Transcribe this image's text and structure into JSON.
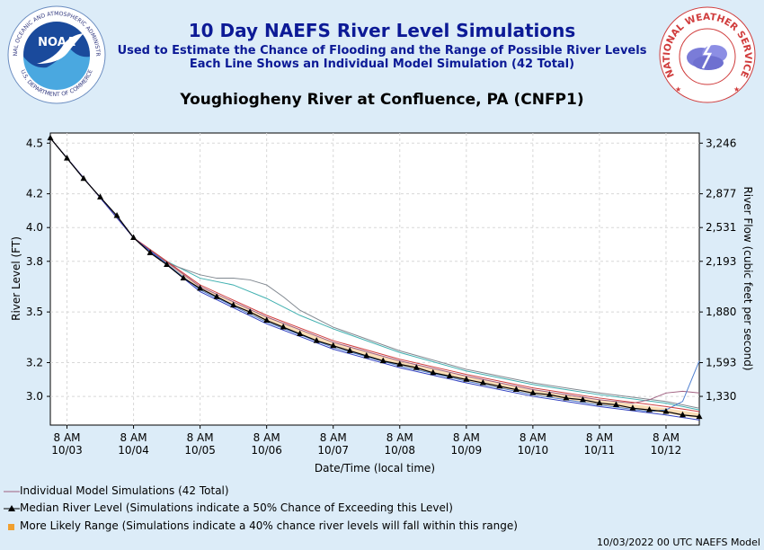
{
  "header": {
    "title": "10 Day NAEFS River Level Simulations",
    "subtitle1": "Used to Estimate the Chance of Flooding and the Range of Possible River Levels",
    "subtitle2": "Each Line Shows an Individual Model Simulation (42 Total)",
    "location": "Youghiogheny River at Confluence, PA (CNFP1)"
  },
  "logos": {
    "left": "NOAA",
    "left_ring_top": "NATIONAL OCEANIC AND ATMOSPHERIC ADMINISTRATION",
    "left_ring_bottom": "U.S. DEPARTMENT OF COMMERCE",
    "right_ring": "NATIONAL WEATHER SERVICE"
  },
  "legend": {
    "individual": "Individual Model Simulations (42 Total)",
    "median": "Median River Level (Simulations indicate a 50% Chance of Exceeding this Level)",
    "range": "More Likely Range (Simulations indicate a 40% chance river levels will fall within this range)"
  },
  "footer": "10/03/2022 00 UTC NAEFS Model",
  "colors": {
    "title": "#0c1a96",
    "median": "#000000",
    "range": "#f0a030",
    "individual": "#a06080",
    "background": "#dcecf8"
  },
  "chart_data": {
    "type": "line",
    "xlabel": "Date/Time (local time)",
    "ylabel": "River Level (FT)",
    "y2label": "River Flow (cubic feet per second)",
    "x_ticks": [
      {
        "time": "10/03 08:00",
        "line1": "8 AM",
        "line2": "10/03"
      },
      {
        "time": "10/04 08:00",
        "line1": "8 AM",
        "line2": "10/04"
      },
      {
        "time": "10/05 08:00",
        "line1": "8 AM",
        "line2": "10/05"
      },
      {
        "time": "10/06 08:00",
        "line1": "8 AM",
        "line2": "10/06"
      },
      {
        "time": "10/07 08:00",
        "line1": "8 AM",
        "line2": "10/07"
      },
      {
        "time": "10/08 08:00",
        "line1": "8 AM",
        "line2": "10/08"
      },
      {
        "time": "10/09 08:00",
        "line1": "8 AM",
        "line2": "10/09"
      },
      {
        "time": "10/10 08:00",
        "line1": "8 AM",
        "line2": "10/10"
      },
      {
        "time": "10/11 08:00",
        "line1": "8 AM",
        "line2": "10/11"
      },
      {
        "time": "10/12 08:00",
        "line1": "8 AM",
        "line2": "10/12"
      }
    ],
    "xlim": [
      "10/03 02:00",
      "10/12 20:00"
    ],
    "ylim": [
      2.83,
      4.56
    ],
    "y_ticks": [
      3.0,
      3.2,
      3.5,
      3.8,
      4.0,
      4.2,
      4.5
    ],
    "y_tick_labels": [
      "3.0",
      "3.2",
      "3.5",
      "3.8",
      "4.0",
      "4.2",
      "4.5"
    ],
    "y2_ticks": [
      {
        "level": 3.0,
        "label": "1,330"
      },
      {
        "level": 3.2,
        "label": "1,593"
      },
      {
        "level": 3.5,
        "label": "1,880"
      },
      {
        "level": 3.8,
        "label": "2,193"
      },
      {
        "level": 4.0,
        "label": "2,531"
      },
      {
        "level": 4.2,
        "label": "2,877"
      },
      {
        "level": 4.5,
        "label": "3,246"
      }
    ],
    "grid": true,
    "median": {
      "name": "Median River Level",
      "x": [
        "10/03 02:00",
        "10/03 08:00",
        "10/03 14:00",
        "10/03 20:00",
        "10/04 02:00",
        "10/04 08:00",
        "10/04 14:00",
        "10/04 20:00",
        "10/05 02:00",
        "10/05 08:00",
        "10/05 14:00",
        "10/05 20:00",
        "10/06 02:00",
        "10/06 08:00",
        "10/06 14:00",
        "10/06 20:00",
        "10/07 02:00",
        "10/07 08:00",
        "10/07 14:00",
        "10/07 20:00",
        "10/08 02:00",
        "10/08 08:00",
        "10/08 14:00",
        "10/08 20:00",
        "10/09 02:00",
        "10/09 08:00",
        "10/09 14:00",
        "10/09 20:00",
        "10/10 02:00",
        "10/10 08:00",
        "10/10 14:00",
        "10/10 20:00",
        "10/11 02:00",
        "10/11 08:00",
        "10/11 14:00",
        "10/11 20:00",
        "10/12 02:00",
        "10/12 08:00",
        "10/12 14:00",
        "10/12 20:00"
      ],
      "values": [
        4.53,
        4.41,
        4.29,
        4.18,
        4.07,
        3.94,
        3.85,
        3.78,
        3.7,
        3.64,
        3.59,
        3.54,
        3.5,
        3.45,
        3.41,
        3.37,
        3.33,
        3.3,
        3.27,
        3.24,
        3.21,
        3.19,
        3.17,
        3.14,
        3.12,
        3.1,
        3.08,
        3.06,
        3.04,
        3.02,
        3.01,
        2.99,
        2.98,
        2.96,
        2.95,
        2.93,
        2.92,
        2.91,
        2.89,
        2.88
      ]
    },
    "range": {
      "name": "More Likely Range",
      "x": [
        "10/03 02:00",
        "10/04 08:00",
        "10/05 08:00",
        "10/06 08:00",
        "10/07 08:00",
        "10/08 08:00",
        "10/09 08:00",
        "10/10 08:00",
        "10/11 08:00",
        "10/12 08:00",
        "10/12 20:00"
      ],
      "low": [
        4.53,
        3.94,
        3.63,
        3.44,
        3.29,
        3.18,
        3.09,
        3.01,
        2.95,
        2.9,
        2.87
      ],
      "high": [
        4.53,
        3.94,
        3.65,
        3.47,
        3.32,
        3.21,
        3.12,
        3.04,
        2.98,
        2.93,
        2.9
      ]
    },
    "series": [
      {
        "x": [
          "10/03 02:00",
          "10/04 08:00",
          "10/04 20:00",
          "10/05 08:00",
          "10/05 20:00",
          "10/06 08:00",
          "10/06 20:00",
          "10/07 08:00",
          "10/08 08:00",
          "10/09 08:00",
          "10/10 08:00",
          "10/11 08:00",
          "10/12 08:00",
          "10/12 20:00"
        ],
        "values": [
          4.53,
          3.94,
          3.8,
          3.7,
          3.66,
          3.58,
          3.48,
          3.4,
          3.26,
          3.15,
          3.07,
          3.01,
          2.96,
          2.92
        ],
        "color": "#40b0b0"
      },
      {
        "x": [
          "10/03 02:00",
          "10/04 08:00",
          "10/04 20:00",
          "10/05 08:00",
          "10/05 14:00",
          "10/05 20:00",
          "10/06 02:00",
          "10/06 08:00",
          "10/06 14:00",
          "10/06 20:00",
          "10/07 08:00",
          "10/08 08:00",
          "10/09 08:00",
          "10/10 08:00",
          "10/11 08:00",
          "10/12 08:00",
          "10/12 20:00"
        ],
        "values": [
          4.53,
          3.94,
          3.79,
          3.72,
          3.7,
          3.7,
          3.69,
          3.66,
          3.59,
          3.51,
          3.41,
          3.27,
          3.16,
          3.08,
          3.02,
          2.97,
          2.93
        ],
        "color": "#808890"
      },
      {
        "x": [
          "10/03 02:00",
          "10/04 08:00",
          "10/05 08:00",
          "10/06 08:00",
          "10/07 08:00",
          "10/08 08:00",
          "10/09 08:00",
          "10/10 08:00",
          "10/11 08:00",
          "10/11 20:00",
          "10/12 02:00",
          "10/12 08:00",
          "10/12 14:00",
          "10/12 20:00"
        ],
        "values": [
          4.53,
          3.94,
          3.65,
          3.47,
          3.32,
          3.21,
          3.12,
          3.04,
          2.98,
          2.96,
          2.98,
          3.02,
          3.03,
          3.02
        ],
        "color": "#a06080"
      },
      {
        "x": [
          "10/03 02:00",
          "10/04 08:00",
          "10/05 08:00",
          "10/06 08:00",
          "10/07 08:00",
          "10/08 08:00",
          "10/09 08:00",
          "10/10 08:00",
          "10/11 08:00",
          "10/12 02:00",
          "10/12 08:00",
          "10/12 14:00",
          "10/12 20:00"
        ],
        "values": [
          4.53,
          3.94,
          3.63,
          3.44,
          3.29,
          3.18,
          3.09,
          3.01,
          2.95,
          2.91,
          2.92,
          2.97,
          3.21
        ],
        "color": "#5080d0"
      },
      {
        "x": [
          "10/03 02:00",
          "10/04 08:00",
          "10/05 08:00",
          "10/06 08:00",
          "10/07 08:00",
          "10/08 08:00",
          "10/09 08:00",
          "10/10 08:00",
          "10/11 08:00",
          "10/12 08:00",
          "10/12 20:00"
        ],
        "values": [
          4.53,
          3.94,
          3.66,
          3.48,
          3.33,
          3.22,
          3.13,
          3.05,
          2.99,
          2.94,
          2.91
        ],
        "color": "#d04040"
      },
      {
        "x": [
          "10/03 02:00",
          "10/04 08:00",
          "10/05 08:00",
          "10/06 08:00",
          "10/07 08:00",
          "10/08 08:00",
          "10/09 08:00",
          "10/10 08:00",
          "10/11 08:00",
          "10/12 08:00",
          "10/12 20:00"
        ],
        "values": [
          4.53,
          3.94,
          3.62,
          3.43,
          3.28,
          3.17,
          3.08,
          3.0,
          2.94,
          2.89,
          2.86
        ],
        "color": "#3040c0"
      }
    ]
  }
}
